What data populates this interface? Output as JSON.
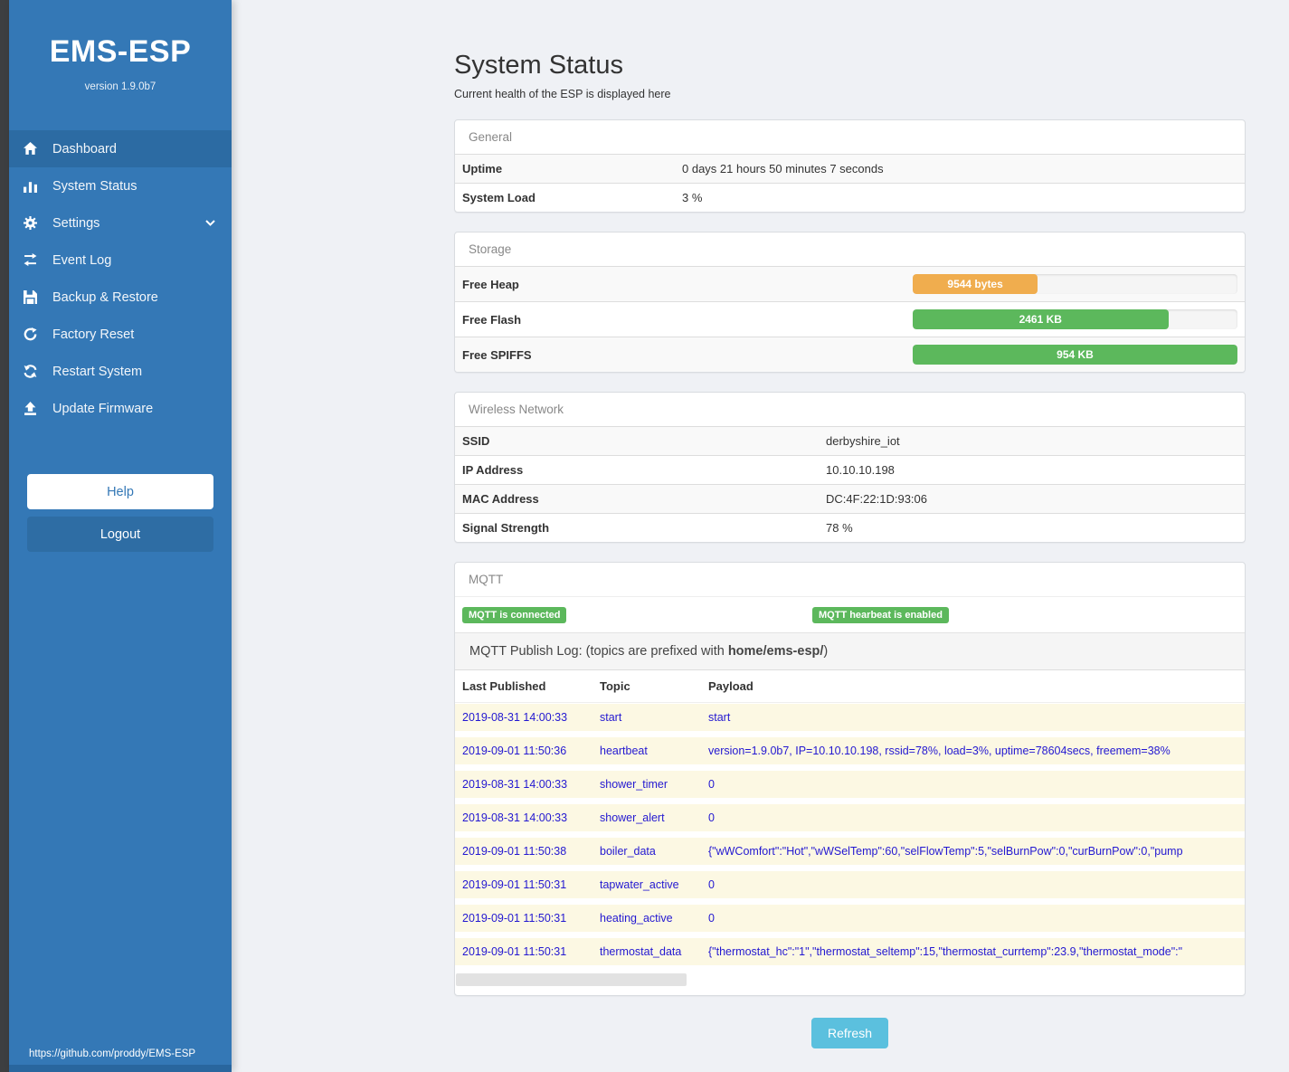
{
  "sidebar": {
    "title": "EMS-ESP",
    "version": "version 1.9.0b7",
    "items": [
      {
        "label": "Dashboard",
        "icon": "home-icon",
        "active": true
      },
      {
        "label": "System Status",
        "icon": "chart-bars-icon",
        "active": false
      },
      {
        "label": "Settings",
        "icon": "gear-icon",
        "active": false,
        "has_chevron": true
      },
      {
        "label": "Event Log",
        "icon": "exchange-arrows-icon",
        "active": false
      },
      {
        "label": "Backup & Restore",
        "icon": "floppy-save-icon",
        "active": false
      },
      {
        "label": "Factory Reset",
        "icon": "rotate-icon",
        "active": false
      },
      {
        "label": "Restart System",
        "icon": "refresh-icon",
        "active": false
      },
      {
        "label": "Update Firmware",
        "icon": "upload-icon",
        "active": false
      }
    ],
    "help_label": "Help",
    "logout_label": "Logout",
    "footer_link": "https://github.com/proddy/EMS-ESP"
  },
  "main": {
    "title": "System Status",
    "subtitle": "Current health of the ESP is displayed here",
    "panels": {
      "general": {
        "title": "General",
        "rows": [
          {
            "label": "Uptime",
            "value": "0 days 21 hours 50 minutes 7 seconds"
          },
          {
            "label": "System Load",
            "value": "3 %"
          }
        ]
      },
      "storage": {
        "title": "Storage",
        "rows": [
          {
            "label": "Free Heap",
            "bar_label": "9544 bytes",
            "percent": 38.5,
            "color": "#f0ad4e"
          },
          {
            "label": "Free Flash",
            "bar_label": "2461 KB",
            "percent": 78.7,
            "color": "#5cb85c"
          },
          {
            "label": "Free SPIFFS",
            "bar_label": "954 KB",
            "percent": 100,
            "color": "#5cb85c"
          }
        ]
      },
      "wireless": {
        "title": "Wireless Network",
        "rows": [
          {
            "label": "SSID",
            "value": "derbyshire_iot"
          },
          {
            "label": "IP Address",
            "value": "10.10.10.198"
          },
          {
            "label": "MAC Address",
            "value": "DC:4F:22:1D:93:06"
          },
          {
            "label": "Signal Strength",
            "value": "78 %"
          }
        ]
      },
      "mqtt": {
        "title": "MQTT",
        "badges": [
          "MQTT is connected",
          "MQTT hearbeat is enabled"
        ],
        "publish_log_prefix": "MQTT Publish Log: (topics are prefixed with ",
        "publish_log_bold": "home/ems-esp/",
        "publish_log_suffix": ")",
        "columns": [
          "Last Published",
          "Topic",
          "Payload"
        ],
        "rows": [
          {
            "time": "2019-08-31 14:00:33",
            "topic": "start",
            "payload": "start"
          },
          {
            "time": "2019-09-01 11:50:36",
            "topic": "heartbeat",
            "payload": "version=1.9.0b7, IP=10.10.10.198, rssid=78%, load=3%, uptime=78604secs, freemem=38%"
          },
          {
            "time": "2019-08-31 14:00:33",
            "topic": "shower_timer",
            "payload": "0"
          },
          {
            "time": "2019-08-31 14:00:33",
            "topic": "shower_alert",
            "payload": "0"
          },
          {
            "time": "2019-09-01 11:50:38",
            "topic": "boiler_data",
            "payload": "{\"wWComfort\":\"Hot\",\"wWSelTemp\":60,\"selFlowTemp\":5,\"selBurnPow\":0,\"curBurnPow\":0,\"pump"
          },
          {
            "time": "2019-09-01 11:50:31",
            "topic": "tapwater_active",
            "payload": "0"
          },
          {
            "time": "2019-09-01 11:50:31",
            "topic": "heating_active",
            "payload": "0"
          },
          {
            "time": "2019-09-01 11:50:31",
            "topic": "thermostat_data",
            "payload": "{\"thermostat_hc\":\"1\",\"thermostat_seltemp\":15,\"thermostat_currtemp\":23.9,\"thermostat_mode\":\""
          }
        ]
      }
    },
    "refresh_label": "Refresh"
  }
}
